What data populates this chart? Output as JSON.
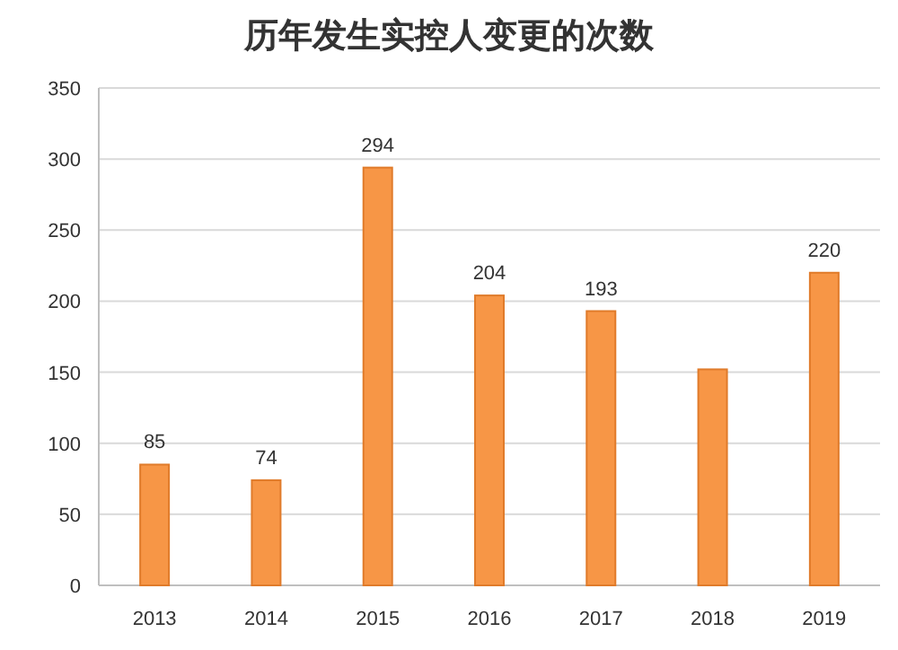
{
  "chart_data": {
    "type": "bar",
    "title": "历年发生实控人变更的次数",
    "categories": [
      "2013",
      "2014",
      "2015",
      "2016",
      "2017",
      "2018",
      "2019"
    ],
    "values": [
      85,
      74,
      294,
      204,
      193,
      152,
      220
    ],
    "value_labels": [
      "85",
      "74",
      "294",
      "204",
      "193",
      null,
      "220"
    ],
    "color": "#f79646",
    "ylim": [
      0,
      350
    ],
    "yticks": [
      0,
      50,
      100,
      150,
      200,
      250,
      300,
      350
    ],
    "grid": "y"
  }
}
